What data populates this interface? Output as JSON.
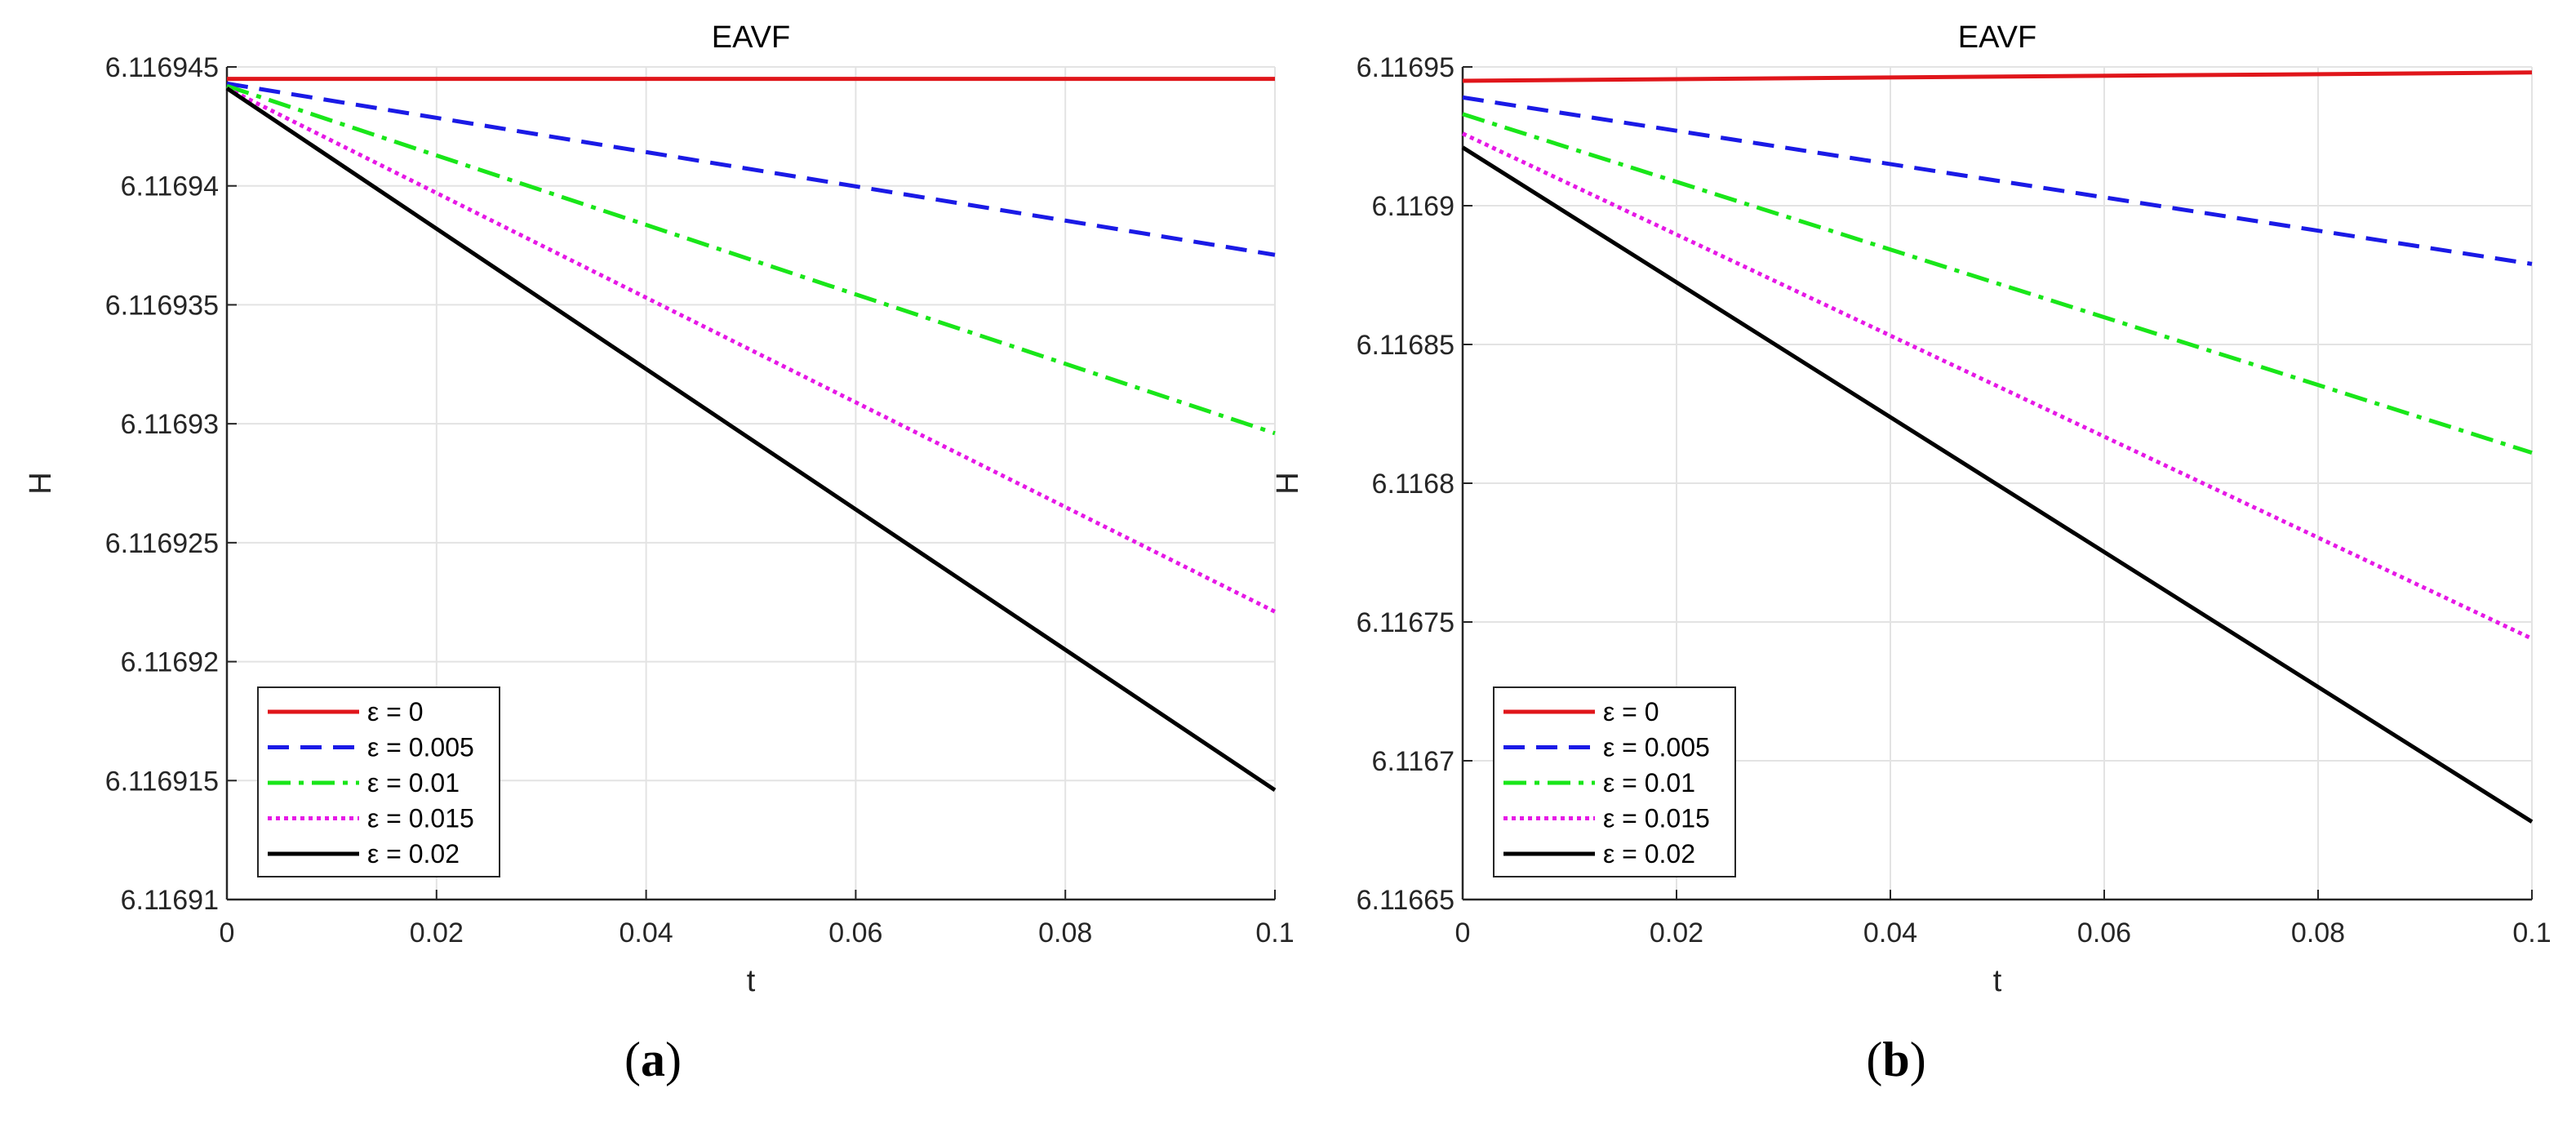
{
  "chart_data": [
    {
      "type": "line",
      "title": "EAVF",
      "xlabel": "t",
      "ylabel": "H",
      "caption_letter": "a",
      "xlim": [
        0,
        0.1
      ],
      "ylim": [
        6.11691,
        6.116945
      ],
      "x_ticks": [
        0,
        0.02,
        0.04,
        0.06,
        0.08,
        0.1
      ],
      "x_tick_labels": [
        "0",
        "0.02",
        "0.04",
        "0.06",
        "0.08",
        "0.1"
      ],
      "y_ticks": [
        6.11691,
        6.116915,
        6.11692,
        6.116925,
        6.11693,
        6.116935,
        6.11694,
        6.116945
      ],
      "y_tick_labels": [
        "6.11691",
        "6.116915",
        "6.11692",
        "6.116925",
        "6.11693",
        "6.116935",
        "6.11694",
        "6.116945"
      ],
      "grid": true,
      "legend_position": "bottom-left",
      "series": [
        {
          "name": "ε = 0",
          "color": "#e0161b",
          "style": "solid",
          "x": [
            0,
            0.1
          ],
          "y": [
            6.1169445,
            6.1169445
          ]
        },
        {
          "name": "ε = 0.005",
          "color": "#1a1ae6",
          "style": "dashed",
          "x": [
            0,
            0.1
          ],
          "y": [
            6.1169443,
            6.1169371
          ]
        },
        {
          "name": "ε = 0.01",
          "color": "#19e619",
          "style": "dashdot",
          "x": [
            0,
            0.1
          ],
          "y": [
            6.1169442,
            6.1169296
          ]
        },
        {
          "name": "ε = 0.015",
          "color": "#e619e6",
          "style": "dotted",
          "x": [
            0,
            0.1
          ],
          "y": [
            6.1169441,
            6.1169221
          ]
        },
        {
          "name": "ε = 0.02",
          "color": "#000000",
          "style": "solid",
          "x": [
            0,
            0.1
          ],
          "y": [
            6.1169441,
            6.1169146
          ]
        }
      ]
    },
    {
      "type": "line",
      "title": "EAVF",
      "xlabel": "t",
      "ylabel": "H",
      "caption_letter": "b",
      "xlim": [
        0,
        0.1
      ],
      "ylim": [
        6.11665,
        6.11695
      ],
      "x_ticks": [
        0,
        0.02,
        0.04,
        0.06,
        0.08,
        0.1
      ],
      "x_tick_labels": [
        "0",
        "0.02",
        "0.04",
        "0.06",
        "0.08",
        "0.1"
      ],
      "y_ticks": [
        6.11665,
        6.1167,
        6.11675,
        6.1168,
        6.11685,
        6.1169,
        6.11695
      ],
      "y_tick_labels": [
        "6.11665",
        "6.1167",
        "6.11675",
        "6.1168",
        "6.11685",
        "6.1169",
        "6.11695"
      ],
      "grid": true,
      "legend_position": "bottom-left",
      "series": [
        {
          "name": "ε = 0",
          "color": "#e0161b",
          "style": "solid",
          "x": [
            0,
            0.1
          ],
          "y": [
            6.116945,
            6.116948
          ]
        },
        {
          "name": "ε = 0.005",
          "color": "#1a1ae6",
          "style": "dashed",
          "x": [
            0,
            0.1
          ],
          "y": [
            6.116939,
            6.116879
          ]
        },
        {
          "name": "ε = 0.01",
          "color": "#19e619",
          "style": "dashdot",
          "x": [
            0,
            0.1
          ],
          "y": [
            6.116933,
            6.116811
          ]
        },
        {
          "name": "ε = 0.015",
          "color": "#e619e6",
          "style": "dotted",
          "x": [
            0,
            0.1
          ],
          "y": [
            6.116926,
            6.116744
          ]
        },
        {
          "name": "ε = 0.02",
          "color": "#000000",
          "style": "solid",
          "x": [
            0,
            0.1
          ],
          "y": [
            6.116921,
            6.116678
          ]
        }
      ]
    }
  ]
}
